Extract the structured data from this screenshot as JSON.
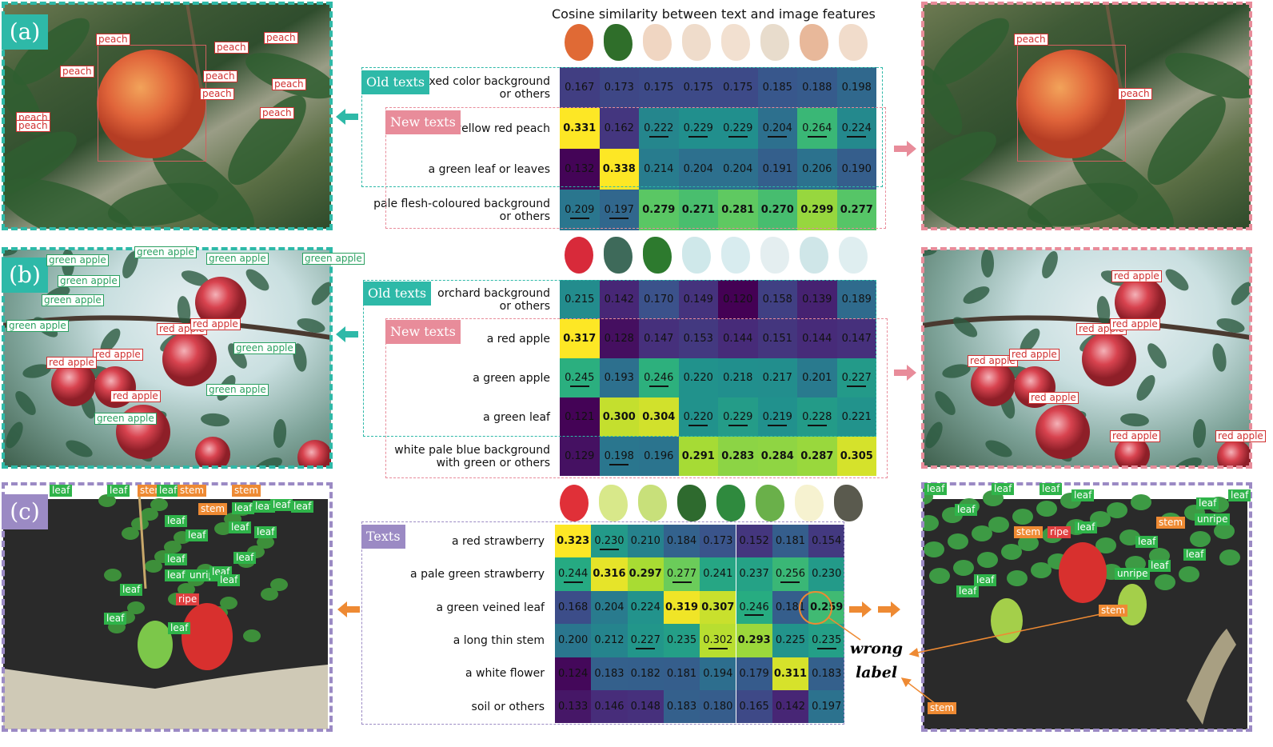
{
  "title": "Cosine similarity between text and image features",
  "colors": {
    "teal": "#2eb9a8",
    "pink": "#e88c9a",
    "lavender": "#9b8ac4",
    "orange": "#ee8a33"
  },
  "panels": [
    {
      "id": "a",
      "tag": "(a)",
      "old_badge": "Old texts",
      "new_badge": "New texts",
      "rows": [
        "mixed color background\nor others",
        "a yellow red peach",
        "a green leaf or leaves",
        "pale flesh-coloured background\nor others"
      ],
      "values": [
        [
          0.167,
          0.173,
          0.175,
          0.175,
          0.175,
          0.185,
          0.188,
          0.198
        ],
        [
          0.331,
          0.162,
          0.222,
          0.229,
          0.229,
          0.204,
          0.264,
          0.224
        ],
        [
          0.132,
          0.338,
          0.214,
          0.204,
          0.204,
          0.191,
          0.206,
          0.19
        ],
        [
          0.209,
          0.197,
          0.279,
          0.271,
          0.281,
          0.27,
          0.299,
          0.277
        ]
      ],
      "bold": [
        [
          1,
          0
        ],
        [
          2,
          1
        ],
        [
          3,
          2
        ],
        [
          3,
          3
        ],
        [
          3,
          4
        ],
        [
          3,
          5
        ],
        [
          3,
          6
        ],
        [
          3,
          7
        ]
      ],
      "underline": [
        [
          1,
          2
        ],
        [
          1,
          3
        ],
        [
          1,
          4
        ],
        [
          1,
          5
        ],
        [
          1,
          6
        ],
        [
          1,
          7
        ],
        [
          3,
          0
        ],
        [
          3,
          1
        ]
      ],
      "left_labels": [
        "peach",
        "peach",
        "peach",
        "peach",
        "peach",
        "peach",
        "peach",
        "peach",
        "peach",
        "peach"
      ],
      "right_labels": [
        "peach",
        "peach"
      ]
    },
    {
      "id": "b",
      "tag": "(b)",
      "old_badge": "Old texts",
      "new_badge": "New texts",
      "rows": [
        "orchard background\nor others",
        "a red apple",
        "a green apple",
        "a green leaf",
        "white pale blue background\nwith green or others"
      ],
      "values": [
        [
          0.215,
          0.142,
          0.17,
          0.149,
          0.12,
          0.158,
          0.139,
          0.189
        ],
        [
          0.317,
          0.128,
          0.147,
          0.153,
          0.144,
          0.151,
          0.144,
          0.147
        ],
        [
          0.245,
          0.193,
          0.246,
          0.22,
          0.218,
          0.217,
          0.201,
          0.227
        ],
        [
          0.121,
          0.3,
          0.304,
          0.22,
          0.229,
          0.219,
          0.228,
          0.221
        ],
        [
          0.129,
          0.198,
          0.196,
          0.291,
          0.283,
          0.284,
          0.287,
          0.305
        ]
      ],
      "bold": [
        [
          1,
          0
        ],
        [
          3,
          1
        ],
        [
          3,
          2
        ],
        [
          4,
          3
        ],
        [
          4,
          4
        ],
        [
          4,
          5
        ],
        [
          4,
          6
        ],
        [
          4,
          7
        ]
      ],
      "underline": [
        [
          2,
          0
        ],
        [
          2,
          2
        ],
        [
          2,
          7
        ],
        [
          3,
          3
        ],
        [
          3,
          4
        ],
        [
          3,
          5
        ],
        [
          3,
          6
        ],
        [
          4,
          1
        ]
      ],
      "left_labels": [
        "green apple",
        "green apple",
        "green apple",
        "green apple",
        "green apple",
        "green apple",
        "green apple",
        "green apple",
        "green apple",
        "green apple",
        "red apple",
        "red apple",
        "red apple",
        "red apple",
        "red apple"
      ],
      "right_labels": [
        "red apple",
        "red apple",
        "red apple",
        "red apple",
        "red apple",
        "red apple",
        "red apple",
        "red apple"
      ]
    },
    {
      "id": "c",
      "tag": "(c)",
      "texts_badge": "Texts",
      "rows": [
        "a red strawberry",
        "a pale green strawberry",
        "a green veined leaf",
        "a long thin stem",
        "a white flower",
        "soil or others"
      ],
      "values": [
        [
          0.323,
          0.23,
          0.21,
          0.184,
          0.173,
          0.152,
          0.181,
          0.154
        ],
        [
          0.244,
          0.316,
          0.297,
          0.277,
          0.241,
          0.237,
          0.256,
          0.23
        ],
        [
          0.168,
          0.204,
          0.224,
          0.319,
          0.307,
          0.246,
          0.181,
          0.259
        ],
        [
          0.2,
          0.212,
          0.227,
          0.235,
          0.302,
          0.293,
          0.225,
          0.235
        ],
        [
          0.124,
          0.183,
          0.182,
          0.181,
          0.194,
          0.179,
          0.311,
          0.183
        ],
        [
          0.133,
          0.146,
          0.148,
          0.183,
          0.18,
          0.165,
          0.142,
          0.197
        ]
      ],
      "bold": [
        [
          0,
          0
        ],
        [
          1,
          1
        ],
        [
          1,
          2
        ],
        [
          2,
          3
        ],
        [
          2,
          4
        ],
        [
          2,
          7
        ],
        [
          3,
          5
        ],
        [
          4,
          6
        ]
      ],
      "underline": [
        [
          0,
          1
        ],
        [
          1,
          0
        ],
        [
          1,
          3
        ],
        [
          1,
          6
        ],
        [
          2,
          5
        ],
        [
          3,
          2
        ],
        [
          3,
          4
        ],
        [
          3,
          7
        ]
      ],
      "left_labels": [
        "leaf",
        "leaf",
        "stem",
        "leaf",
        "stem",
        "stem",
        "stem",
        "leaf",
        "leaf",
        "leaf",
        "leaf",
        "leaf",
        "leaf",
        "leaf",
        "leaf",
        "leaf",
        "leaf",
        "unripe",
        "leaf",
        "leaf",
        "ripe",
        "leaf",
        "leaf",
        "leaf",
        "leaf"
      ],
      "right_labels": [
        "leaf",
        "leaf",
        "leaf",
        "leaf",
        "leaf",
        "stem",
        "ripe",
        "leaf",
        "leaf",
        "unripe",
        "leaf",
        "stem",
        "leaf",
        "leaf",
        "leaf",
        "unripe",
        "leaf",
        "stem",
        "leaf",
        "stem"
      ],
      "wrong_label": "wrong\nlabel"
    }
  ]
}
